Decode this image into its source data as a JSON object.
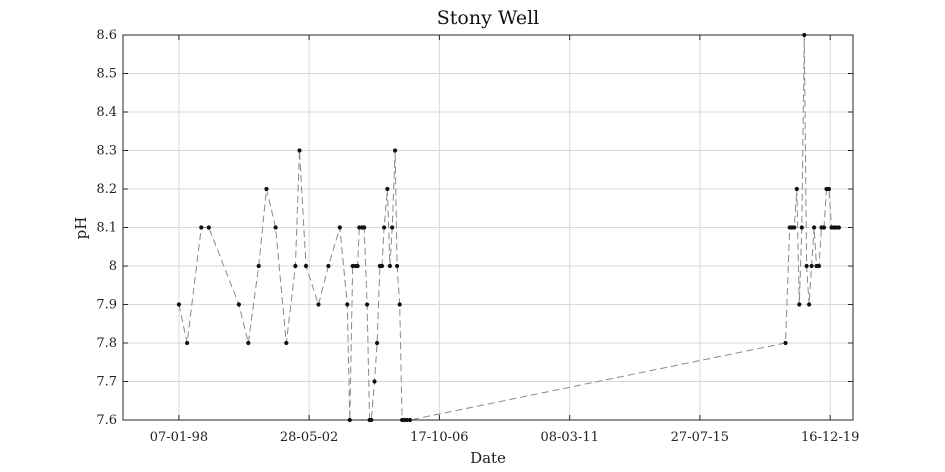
{
  "chart_data": {
    "type": "line",
    "title": "Stony Well",
    "xlabel": "Date",
    "ylabel": "pH",
    "x_ticks": [
      "07-01-98",
      "28-05-02",
      "17-10-06",
      "08-03-11",
      "27-07-15",
      "16-12-19"
    ],
    "xlim": [
      "1996-02-19",
      "2020-09-22"
    ],
    "ylim": [
      7.6,
      8.6
    ],
    "y_ticks": [
      7.6,
      7.7,
      7.8,
      7.9,
      8,
      8.1,
      8.2,
      8.3,
      8.4,
      8.5,
      8.6
    ],
    "grid": true,
    "line_color": "#8a8a8a",
    "marker_color": "#111111",
    "series": [
      {
        "x": [
          "1998-01-07",
          "1998-04-18",
          "1998-10-10",
          "1999-01-10",
          "2000-01-15",
          "2000-05-10",
          "2000-09-15",
          "2000-12-20",
          "2001-04-10",
          "2001-08-20",
          "2001-12-10",
          "2002-01-30",
          "2002-04-20",
          "2002-09-20",
          "2003-01-20",
          "2003-06-10",
          "2003-09-10",
          "2003-10-10",
          "2003-11-15",
          "2003-12-20",
          "2004-01-15",
          "2004-02-05",
          "2004-03-10",
          "2004-04-05",
          "2004-05-10",
          "2004-06-10",
          "2004-07-01",
          "2004-08-10",
          "2004-09-10",
          "2004-10-15",
          "2004-11-10",
          "2004-12-05",
          "2005-01-15",
          "2005-02-15",
          "2005-03-15",
          "2005-04-20",
          "2005-05-15",
          "2005-06-15",
          "2005-07-15",
          "2005-08-15",
          "2005-09-15",
          "2005-10-20",
          "2018-06-15",
          "2018-08-05",
          "2018-09-01",
          "2018-10-01",
          "2018-11-01",
          "2018-12-01",
          "2019-01-01",
          "2019-02-01",
          "2019-03-01",
          "2019-04-01",
          "2019-05-01",
          "2019-06-01",
          "2019-07-01",
          "2019-08-01",
          "2019-09-01",
          "2019-10-01",
          "2019-11-01",
          "2019-12-01",
          "2020-01-01",
          "2020-02-01",
          "2020-03-01",
          "2020-04-01"
        ],
        "y": [
          7.9,
          7.8,
          8.1,
          8.1,
          7.9,
          7.8,
          8.0,
          8.2,
          8.1,
          7.8,
          8.0,
          8.3,
          8.0,
          7.9,
          8.0,
          8.1,
          7.9,
          7.6,
          8.0,
          8.0,
          8.0,
          8.1,
          8.1,
          8.1,
          7.9,
          7.6,
          7.6,
          7.7,
          7.8,
          8.0,
          8.0,
          8.1,
          8.2,
          8.0,
          8.1,
          8.3,
          8.0,
          7.9,
          7.6,
          7.6,
          7.6,
          7.6,
          7.8,
          8.1,
          8.1,
          8.1,
          8.2,
          7.9,
          8.1,
          8.6,
          8.0,
          7.9,
          8.0,
          8.1,
          8.0,
          8.0,
          8.1,
          8.1,
          8.2,
          8.2,
          8.1,
          8.1,
          8.1,
          8.1
        ]
      }
    ]
  }
}
